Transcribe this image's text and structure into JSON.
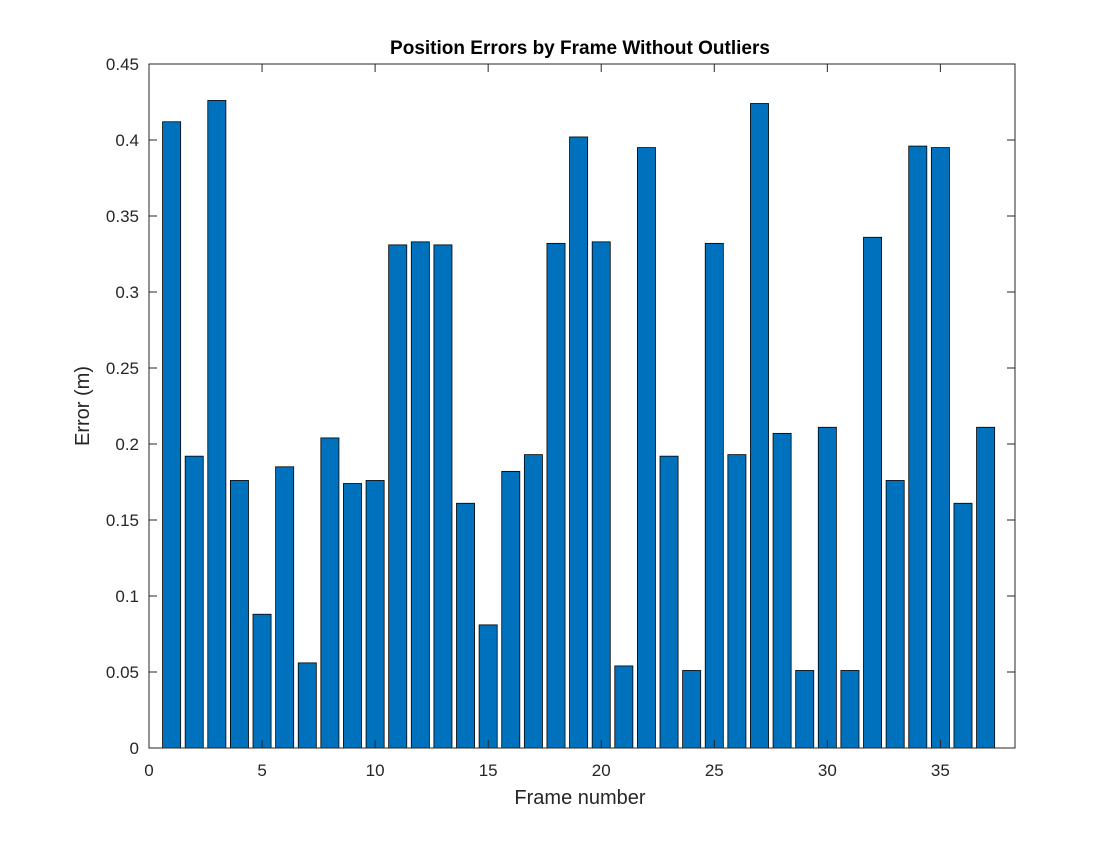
{
  "chart_data": {
    "type": "bar",
    "title": "Position Errors by Frame Without Outliers",
    "xlabel": "Frame number",
    "ylabel": "Error (m)",
    "x": [
      1,
      2,
      3,
      4,
      5,
      6,
      7,
      8,
      9,
      10,
      11,
      12,
      13,
      14,
      15,
      16,
      17,
      18,
      19,
      20,
      21,
      22,
      23,
      24,
      25,
      26,
      27,
      28,
      29,
      30,
      31,
      32,
      33,
      34,
      35,
      36,
      37
    ],
    "values": [
      0.412,
      0.192,
      0.426,
      0.176,
      0.088,
      0.185,
      0.056,
      0.204,
      0.174,
      0.176,
      0.331,
      0.333,
      0.331,
      0.161,
      0.081,
      0.182,
      0.193,
      0.332,
      0.402,
      0.333,
      0.054,
      0.395,
      0.192,
      0.051,
      0.332,
      0.193,
      0.424,
      0.207,
      0.051,
      0.211,
      0.051,
      0.336,
      0.176,
      0.396,
      0.395,
      0.161,
      0.211
    ],
    "xlim": [
      0,
      38.3
    ],
    "ylim": [
      0,
      0.45
    ],
    "xticks": [
      0,
      5,
      10,
      15,
      20,
      25,
      30,
      35
    ],
    "xtick_labels": [
      "0",
      "5",
      "10",
      "15",
      "20",
      "25",
      "30",
      "35"
    ],
    "yticks": [
      0,
      0.05,
      0.1,
      0.15,
      0.2,
      0.25,
      0.3,
      0.35,
      0.4,
      0.45
    ],
    "ytick_labels": [
      "0",
      "0.05",
      "0.1",
      "0.15",
      "0.2",
      "0.25",
      "0.3",
      "0.35",
      "0.4",
      "0.45"
    ],
    "grid": false,
    "bar_color": "#0072BD",
    "bar_edge_color": "#000000"
  }
}
